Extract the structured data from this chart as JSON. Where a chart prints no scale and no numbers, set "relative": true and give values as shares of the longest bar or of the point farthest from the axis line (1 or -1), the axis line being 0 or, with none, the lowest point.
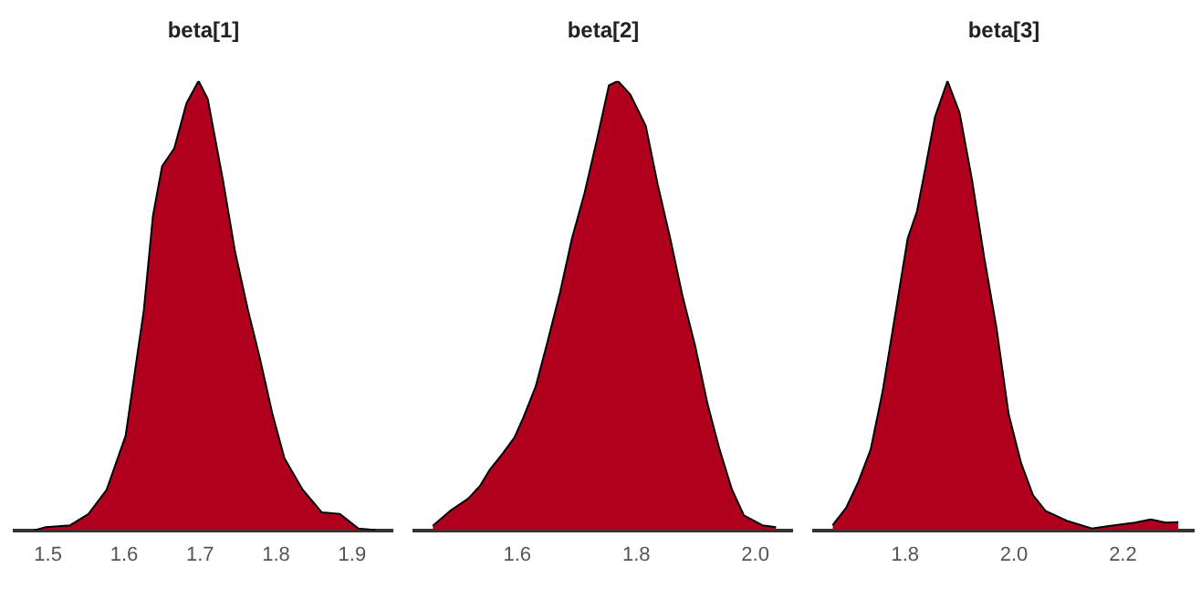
{
  "chart_data": [
    {
      "type": "area",
      "title": "beta[1]",
      "relative": true,
      "color": "#b0001e",
      "tick_labels": "x",
      "xlim": [
        1.456,
        1.953
      ],
      "xticks": [
        1.5,
        1.6,
        1.7,
        1.8,
        1.9
      ],
      "x": [
        1.482,
        1.497,
        1.529,
        1.553,
        1.577,
        1.602,
        1.626,
        1.638,
        1.65,
        1.666,
        1.682,
        1.698,
        1.71,
        1.73,
        1.746,
        1.763,
        1.779,
        1.795,
        1.811,
        1.835,
        1.86,
        1.884,
        1.908,
        1.932
      ],
      "values": [
        0,
        0.007,
        0.011,
        0.036,
        0.09,
        0.21,
        0.49,
        0.7,
        0.81,
        0.85,
        0.95,
        1,
        0.96,
        0.78,
        0.62,
        0.49,
        0.38,
        0.26,
        0.16,
        0.09,
        0.04,
        0.036,
        0.004,
        0
      ]
    },
    {
      "type": "area",
      "title": "beta[2]",
      "relative": true,
      "color": "#b0001e",
      "tick_labels": "x",
      "xlim": [
        1.427,
        2.062
      ],
      "xticks": [
        1.6,
        1.8,
        {
          "value": 2,
          "label": "2.0"
        }
      ],
      "x": [
        1.458,
        1.487,
        1.518,
        1.538,
        1.554,
        1.575,
        1.595,
        1.61,
        1.631,
        1.651,
        1.672,
        1.692,
        1.713,
        1.734,
        1.754,
        1.769,
        1.79,
        1.816,
        1.836,
        1.857,
        1.878,
        1.899,
        1.92,
        1.94,
        1.961,
        1.981,
        2.012,
        2.035
      ],
      "values": [
        0.01,
        0.043,
        0.071,
        0.1,
        0.135,
        0.17,
        0.206,
        0.25,
        0.32,
        0.42,
        0.53,
        0.65,
        0.75,
        0.87,
        0.99,
        1,
        0.97,
        0.9,
        0.77,
        0.65,
        0.52,
        0.41,
        0.28,
        0.18,
        0.09,
        0.033,
        0.011,
        0.007
      ]
    },
    {
      "type": "area",
      "title": "beta[3]",
      "relative": true,
      "color": "#b0001e",
      "tick_labels": "x",
      "xlim": [
        1.633,
        2.33
      ],
      "xticks": [
        1.8,
        {
          "value": 2,
          "label": "2.0"
        },
        2.2
      ],
      "x": [
        1.667,
        1.692,
        1.714,
        1.737,
        1.759,
        1.782,
        1.805,
        1.822,
        1.838,
        1.855,
        1.878,
        1.9,
        1.923,
        1.945,
        1.968,
        1.99,
        2.013,
        2.035,
        2.058,
        2.097,
        2.143,
        2.177,
        2.222,
        2.251,
        2.279,
        2.302
      ],
      "values": [
        0.011,
        0.05,
        0.107,
        0.18,
        0.31,
        0.48,
        0.65,
        0.71,
        0.81,
        0.92,
        1,
        0.93,
        0.78,
        0.61,
        0.45,
        0.26,
        0.15,
        0.078,
        0.043,
        0.021,
        0.004,
        0.01,
        0.017,
        0.024,
        0.017,
        0.018
      ]
    }
  ]
}
